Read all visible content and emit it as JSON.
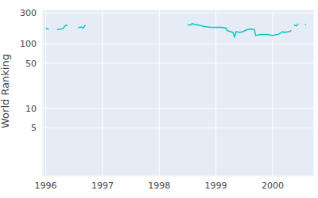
{
  "chart_data": {
    "type": "line",
    "y_label": "World Ranking",
    "log": "y",
    "grid": true,
    "color": "#00c8c8",
    "x": [
      1996.0,
      1996.05,
      1996.1,
      1996.2,
      1996.3,
      1996.33,
      1996.36,
      1996.38,
      1996.45,
      1996.57,
      1996.63,
      1996.66,
      1996.7,
      1997.0,
      1998.5,
      1998.55,
      1998.58,
      1998.62,
      1998.7,
      1998.8,
      1998.9,
      1999.0,
      1999.1,
      1999.18,
      1999.2,
      1999.3,
      1999.33,
      1999.36,
      1999.42,
      1999.48,
      1999.55,
      1999.62,
      1999.68,
      1999.7,
      1999.8,
      1999.9,
      2000.0,
      2000.1,
      2000.18,
      2000.2,
      2000.3,
      2000.33,
      2000.36,
      2000.38,
      2000.42,
      2000.45,
      2000.5,
      2000.57,
      2000.59
    ],
    "values": [
      175,
      168,
      null,
      165,
      172,
      185,
      195,
      190,
      null,
      178,
      182,
      175,
      195,
      null,
      198,
      195,
      205,
      200,
      195,
      185,
      180,
      180,
      180,
      175,
      160,
      150,
      128,
      155,
      150,
      155,
      165,
      170,
      165,
      135,
      140,
      140,
      135,
      140,
      155,
      150,
      155,
      160,
      null,
      195,
      190,
      205,
      null,
      200,
      198
    ],
    "xlim": [
      1995.95,
      2000.73
    ],
    "xticks": [
      1996,
      1997,
      1998,
      1999,
      2000
    ],
    "ylim": [
      0.9,
      340
    ],
    "yticks": [
      5,
      10,
      50,
      100,
      300
    ]
  }
}
